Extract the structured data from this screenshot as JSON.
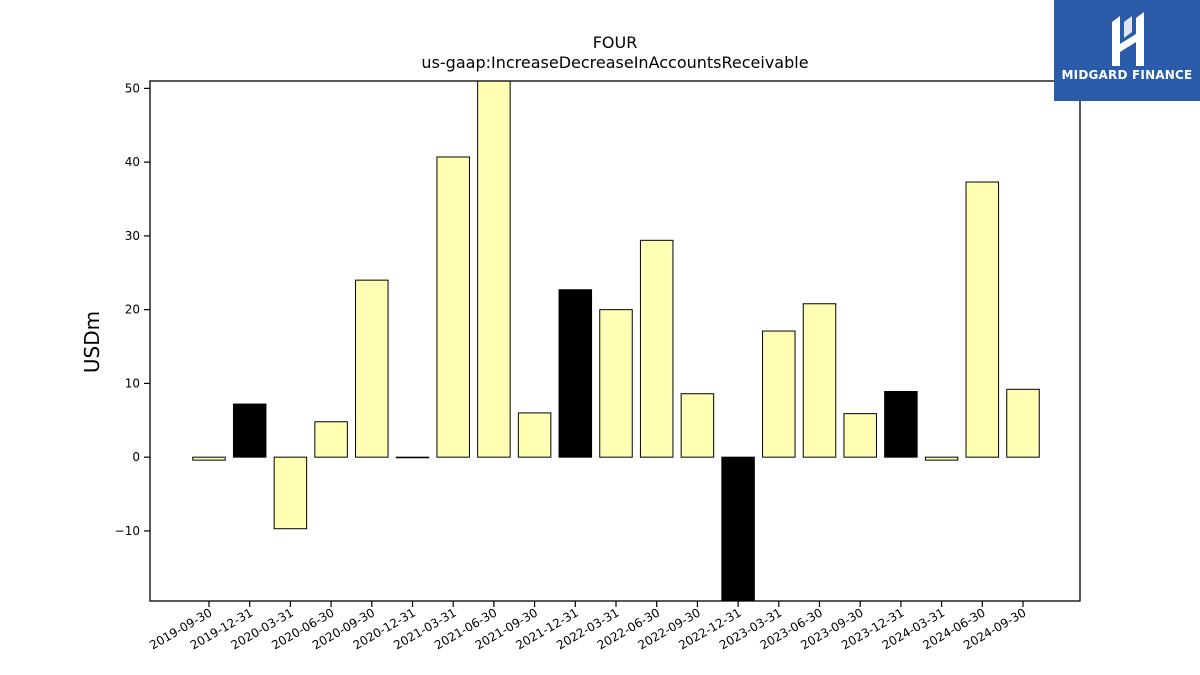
{
  "logo": {
    "text": "MIDGARD FINANCE",
    "background": "#2a5caa"
  },
  "chart_data": {
    "type": "bar",
    "title": "FOUR",
    "subtitle": "us-gaap:IncreaseDecreaseInAccountsReceivable",
    "xlabel": "",
    "ylabel": "USDm",
    "ylim": [
      -19.5,
      51
    ],
    "yticks": [
      -10,
      0,
      10,
      20,
      30,
      40,
      50
    ],
    "ytick_labels": [
      "−10",
      "0",
      "10",
      "20",
      "30",
      "40",
      "50"
    ],
    "grid": false,
    "categories": [
      "2019-09-30",
      "2019-12-31",
      "2020-03-31",
      "2020-06-30",
      "2020-09-30",
      "2020-12-31",
      "2021-03-31",
      "2021-06-30",
      "2021-09-30",
      "2021-12-31",
      "2022-03-31",
      "2022-06-30",
      "2022-09-30",
      "2022-12-31",
      "2023-03-31",
      "2023-06-30",
      "2023-09-30",
      "2023-12-31",
      "2024-03-31",
      "2024-06-30",
      "2024-09-30"
    ],
    "values": [
      -0.4,
      7.2,
      -9.7,
      4.8,
      24.0,
      0.0,
      40.7,
      51.0,
      6.0,
      22.7,
      20.0,
      29.4,
      8.6,
      -19.5,
      17.1,
      20.8,
      5.9,
      8.9,
      -0.4,
      37.3,
      9.2
    ],
    "bar_colors": [
      "#ffffb3",
      "#000000",
      "#ffffb3",
      "#ffffb3",
      "#ffffb3",
      "#ffffb3",
      "#ffffb3",
      "#ffffb3",
      "#ffffb3",
      "#000000",
      "#ffffb3",
      "#ffffb3",
      "#ffffb3",
      "#000000",
      "#ffffb3",
      "#ffffb3",
      "#ffffb3",
      "#000000",
      "#ffffb3",
      "#ffffb3",
      "#ffffb3"
    ]
  }
}
